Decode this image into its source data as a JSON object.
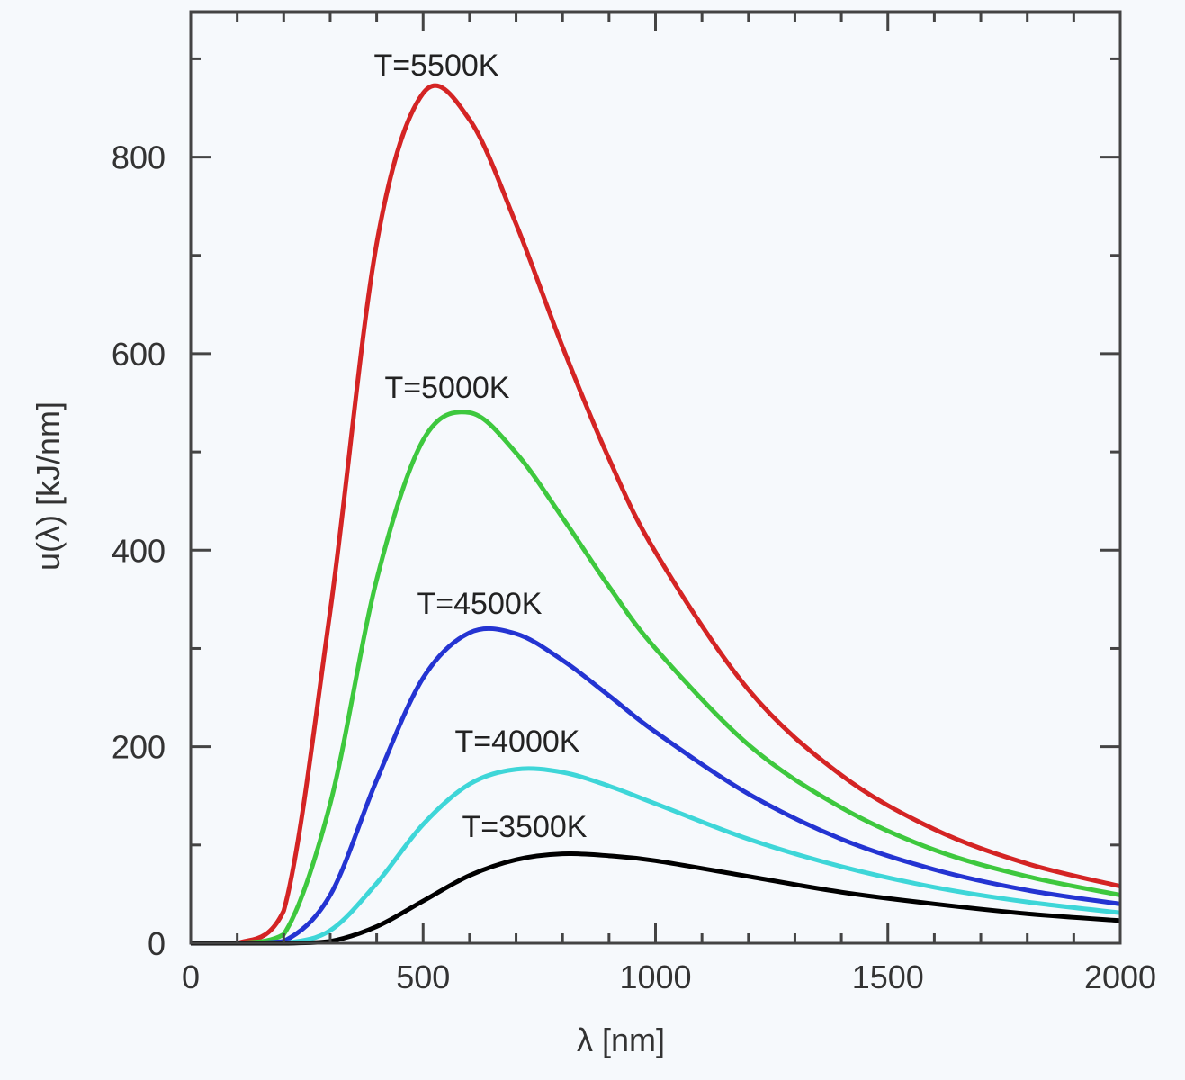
{
  "chart_data": {
    "type": "line",
    "title": "",
    "xlabel": "λ [nm]",
    "ylabel": "u(λ) [kJ/nm]",
    "xlim": [
      0,
      2000
    ],
    "ylim": [
      0,
      948
    ],
    "xticks": [
      0,
      500,
      1000,
      1500,
      2000
    ],
    "yticks": [
      0,
      200,
      400,
      600,
      800
    ],
    "x_minor_step": 100,
    "y_minor_step": 100,
    "grid": false,
    "x": [
      0,
      100,
      200,
      300,
      400,
      500,
      600,
      700,
      800,
      900,
      1000,
      1200,
      1400,
      1600,
      1800,
      2000
    ],
    "series": [
      {
        "name": "T=5500K",
        "color": "#d42424",
        "values": [
          0,
          0,
          33,
          338,
          712,
          865,
          838,
          732,
          607,
          493,
          398,
          258,
          171,
          116,
          81,
          58
        ]
      },
      {
        "name": "T=5000K",
        "color": "#3ec83e",
        "values": [
          0,
          0,
          9,
          142,
          370,
          512,
          540,
          499,
          433,
          363,
          300,
          202,
          138,
          95,
          68,
          49
        ]
      },
      {
        "name": "T=4500K",
        "color": "#2434d2",
        "values": [
          0,
          0,
          2,
          49,
          166,
          270,
          316,
          315,
          288,
          252,
          215,
          152,
          106,
          75,
          54,
          40
        ]
      },
      {
        "name": "T=4000K",
        "color": "#3ed6d8",
        "values": [
          0,
          0,
          0,
          13,
          61,
          121,
          162,
          177,
          174,
          160,
          142,
          106,
          78,
          57,
          42,
          31
        ]
      },
      {
        "name": "T=3500K",
        "color": "#000000",
        "values": [
          0,
          0,
          0,
          2,
          17,
          43,
          69,
          85,
          91,
          89,
          84,
          68,
          52,
          40,
          30,
          23
        ]
      }
    ]
  }
}
